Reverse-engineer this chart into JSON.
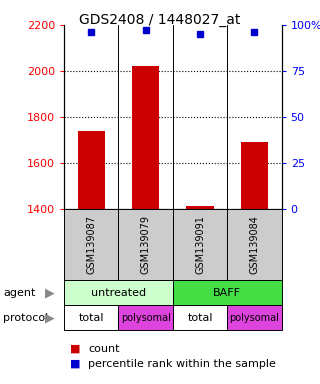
{
  "title": "GDS2408 / 1448027_at",
  "samples": [
    "GSM139087",
    "GSM139079",
    "GSM139091",
    "GSM139084"
  ],
  "red_values": [
    1740,
    2020,
    1415,
    1690
  ],
  "blue_values": [
    96,
    97,
    95,
    96
  ],
  "ylim_left": [
    1400,
    2200
  ],
  "ylim_right": [
    0,
    100
  ],
  "yticks_left": [
    1400,
    1600,
    1800,
    2000,
    2200
  ],
  "yticks_right": [
    0,
    25,
    50,
    75,
    100
  ],
  "ytick_labels_right": [
    "0",
    "25",
    "50",
    "75",
    "100%"
  ],
  "bar_color": "#cc0000",
  "dot_color": "#0000cc",
  "agent_light_color": "#ccffcc",
  "agent_dark_color": "#44dd44",
  "protocol_white": "#ffffff",
  "protocol_pink": "#dd44dd",
  "sample_bg_color": "#cccccc",
  "legend_count_color": "#cc0000",
  "legend_pct_color": "#0000cc",
  "grid_dotted_values": [
    1600,
    1800,
    2000
  ],
  "bar_width": 0.5,
  "dot_size": 5
}
